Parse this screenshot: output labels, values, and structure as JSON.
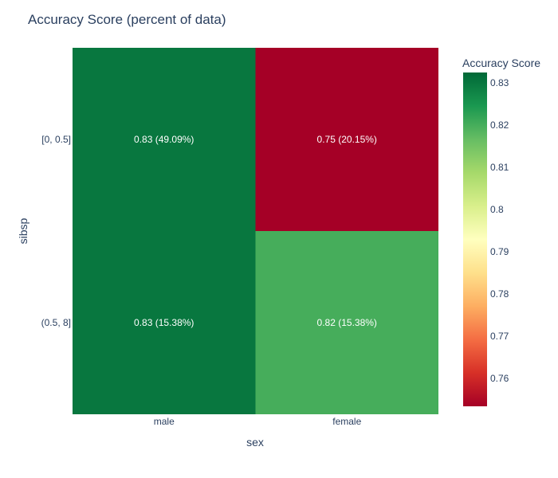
{
  "chart_data": {
    "type": "heatmap",
    "title": "Accuracy Score (percent of data)",
    "xlabel": "sex",
    "ylabel": "sibsp",
    "x": [
      "male",
      "female"
    ],
    "y": [
      "[0, 0.5]",
      "(0.5, 8]"
    ],
    "z": [
      [
        0.83,
        0.75
      ],
      [
        0.83,
        0.82
      ]
    ],
    "percent": [
      [
        "49.09%",
        "20.15%"
      ],
      [
        "15.38%",
        "15.38%"
      ]
    ],
    "cell_labels": [
      [
        "0.83 (49.09%)",
        "0.75 (20.15%)"
      ],
      [
        "0.83 (15.38%)",
        "0.82 (15.38%)"
      ]
    ],
    "colorbar": {
      "title": "Accuracy Score",
      "range": [
        0.7534,
        0.8325
      ],
      "ticks": [
        0.76,
        0.77,
        0.78,
        0.79,
        0.8,
        0.81,
        0.82,
        0.83
      ],
      "tick_labels": [
        "0.76",
        "0.77",
        "0.78",
        "0.79",
        "0.8",
        "0.81",
        "0.82",
        "0.83"
      ],
      "colorscale": "RdYlGn",
      "colors": [
        "#a50026",
        "#d73027",
        "#f46d43",
        "#fdae61",
        "#fee08b",
        "#ffffbf",
        "#d9ef8b",
        "#a6d96a",
        "#66bd63",
        "#1a9850",
        "#006837"
      ]
    }
  }
}
